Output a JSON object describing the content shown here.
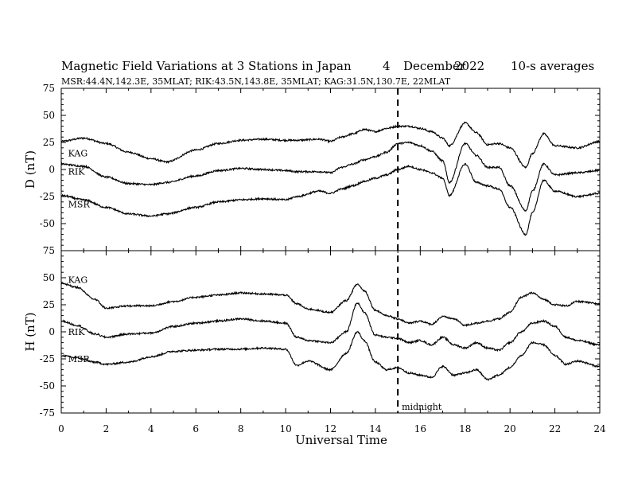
{
  "title": {
    "main": "Magnetic Field Variations at 3 Stations in Japan",
    "day": "4",
    "month": "December",
    "year": "2022",
    "avg": "10-s averages",
    "stations": "MSR:44.4N,142.3E, 35MLAT;  RIK:43.5N,143.8E, 35MLAT;  KAG:31.5N,130.7E, 22MLAT"
  },
  "chart_data": {
    "type": "line",
    "xlabel": "Universal Time",
    "xlim": [
      0,
      24
    ],
    "x_ticks": [
      0,
      2,
      4,
      6,
      8,
      10,
      12,
      14,
      16,
      18,
      20,
      22,
      24
    ],
    "midnight": {
      "x": 15,
      "label": "midnight"
    },
    "panels": [
      {
        "id": "D",
        "ylabel": "D (nT)",
        "ylim": [
          -75,
          75
        ],
        "y_ticks": [
          75,
          50,
          25,
          0,
          -25,
          -50,
          -75
        ],
        "series": [
          {
            "name": "KAG",
            "label_at": [
              0.2,
              15
            ],
            "x": [
              0,
              1,
              2,
              3,
              4,
              4.7,
              6,
              7,
              8,
              9,
              10,
              10.5,
              11.5,
              12,
              12.5,
              13,
              13.5,
              14,
              14.5,
              15,
              15.5,
              16,
              16.5,
              17,
              17.3,
              18,
              18.5,
              19,
              19.5,
              20,
              20.7,
              21,
              21.5,
              22,
              23,
              24
            ],
            "y": [
              26,
              29,
              24,
              16,
              10,
              7,
              18,
              24,
              27,
              28,
              27,
              27,
              28,
              26,
              30,
              33,
              37,
              35,
              38,
              40,
              40,
              38,
              35,
              29,
              22,
              43,
              34,
              23,
              24,
              20,
              2,
              15,
              33,
              22,
              20,
              26
            ]
          },
          {
            "name": "RIK",
            "label_at": [
              0.2,
              -2
            ],
            "x": [
              0,
              1,
              2,
              3,
              4,
              4.7,
              6,
              7,
              8,
              9,
              10,
              10.5,
              11.5,
              12,
              12.5,
              13,
              13.5,
              14,
              14.5,
              15,
              15.5,
              16,
              16.5,
              17,
              17.3,
              18,
              18.5,
              19,
              19.5,
              20,
              20.7,
              21,
              21.5,
              22,
              23,
              24
            ],
            "y": [
              5,
              3,
              -7,
              -13,
              -14,
              -12,
              -6,
              -1,
              1,
              0,
              -1,
              -2,
              -2,
              -3,
              2,
              5,
              9,
              12,
              16,
              24,
              25,
              22,
              17,
              8,
              -12,
              24,
              13,
              2,
              2,
              -15,
              -38,
              -20,
              5,
              -5,
              -3,
              -1
            ]
          },
          {
            "name": "MSR",
            "label_at": [
              0.2,
              -32
            ],
            "x": [
              0,
              1,
              2,
              3,
              4,
              4.7,
              6,
              7,
              8,
              9,
              10,
              10.5,
              11.5,
              12,
              12.5,
              13,
              13.5,
              14,
              14.5,
              15,
              15.5,
              16,
              16.5,
              17,
              17.3,
              18,
              18.5,
              19,
              19.5,
              20,
              20.7,
              21,
              21.5,
              22,
              23,
              24
            ],
            "y": [
              -24,
              -28,
              -35,
              -41,
              -43,
              -41,
              -35,
              -30,
              -28,
              -27,
              -28,
              -25,
              -20,
              -22,
              -18,
              -15,
              -11,
              -8,
              -5,
              0,
              3,
              0,
              -3,
              -8,
              -24,
              5,
              -12,
              -15,
              -18,
              -35,
              -60,
              -40,
              -10,
              -20,
              -25,
              -22
            ]
          }
        ]
      },
      {
        "id": "H",
        "ylabel": "H (nT)",
        "ylim": [
          -75,
          75
        ],
        "y_ticks": [
          75,
          50,
          25,
          0,
          -25,
          -50,
          -75
        ],
        "series": [
          {
            "name": "KAG",
            "label_at": [
              0.2,
              48
            ],
            "x": [
              0,
              0.7,
              1.5,
              2,
              3,
              4,
              5,
              6,
              7,
              8,
              9,
              10,
              10.5,
              11,
              12,
              12.7,
              13.2,
              13.5,
              14,
              14.5,
              15,
              15.5,
              16,
              16.5,
              17,
              17.5,
              18,
              18.5,
              19,
              19.5,
              20,
              20.5,
              21,
              21.5,
              22,
              22.5,
              23,
              24
            ],
            "y": [
              45,
              41,
              30,
              22,
              24,
              24,
              28,
              32,
              34,
              36,
              35,
              34,
              26,
              21,
              18,
              29,
              44,
              38,
              20,
              15,
              12,
              8,
              10,
              7,
              14,
              12,
              6,
              8,
              10,
              12,
              18,
              32,
              36,
              30,
              25,
              24,
              28,
              26
            ]
          },
          {
            "name": "RIK",
            "label_at": [
              0.2,
              0
            ],
            "x": [
              0,
              0.7,
              1.5,
              2,
              3,
              4,
              5,
              6,
              7,
              8,
              9,
              10,
              10.5,
              11,
              12,
              12.7,
              13.2,
              13.5,
              14,
              14.5,
              15,
              15.5,
              16,
              16.5,
              17,
              17.5,
              18,
              18.5,
              19,
              19.5,
              20,
              20.5,
              21,
              21.5,
              22,
              22.5,
              23,
              24
            ],
            "y": [
              10,
              6,
              -2,
              -5,
              -2,
              -1,
              5,
              8,
              10,
              12,
              10,
              8,
              -5,
              -8,
              -10,
              0,
              27,
              18,
              -3,
              -5,
              -6,
              -10,
              -8,
              -12,
              -5,
              -12,
              -15,
              -10,
              -15,
              -17,
              -10,
              0,
              8,
              10,
              5,
              -5,
              -8,
              -12
            ]
          },
          {
            "name": "MSR",
            "label_at": [
              0.2,
              -25
            ],
            "x": [
              0,
              0.7,
              1.5,
              2,
              3,
              4,
              5,
              6,
              7,
              8,
              9,
              10,
              10.5,
              11,
              12,
              12.7,
              13.2,
              13.5,
              14,
              14.5,
              15,
              15.5,
              16,
              16.5,
              17,
              17.5,
              18,
              18.5,
              19,
              19.5,
              20,
              20.5,
              21,
              21.5,
              22,
              22.5,
              23,
              24
            ],
            "y": [
              -22,
              -24,
              -28,
              -30,
              -28,
              -23,
              -18,
              -17,
              -16,
              -16,
              -15,
              -16,
              -31,
              -27,
              -35,
              -20,
              0,
              -8,
              -28,
              -35,
              -33,
              -38,
              -40,
              -42,
              -32,
              -40,
              -38,
              -35,
              -44,
              -40,
              -33,
              -22,
              -10,
              -12,
              -22,
              -30,
              -27,
              -32
            ]
          }
        ]
      }
    ]
  }
}
